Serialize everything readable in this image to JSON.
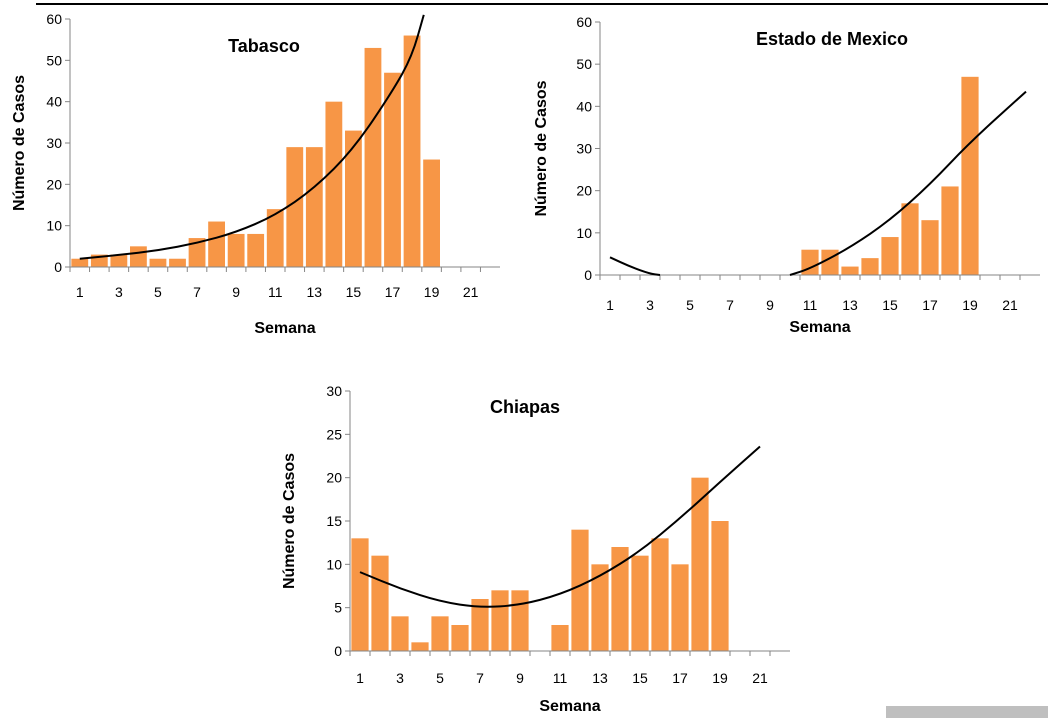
{
  "colors": {
    "bar": "#F79646",
    "trend": "#000000",
    "axis": "#868686"
  },
  "chart_data": [
    {
      "type": "bar",
      "title": "Tabasco",
      "xlabel": "Semana",
      "ylabel": "Número de Casos",
      "ylim": [
        0,
        60
      ],
      "yticks": [
        0,
        10,
        20,
        30,
        40,
        50,
        60
      ],
      "xlim": [
        0.5,
        22.5
      ],
      "xticks": [
        1,
        3,
        5,
        7,
        9,
        11,
        13,
        15,
        17,
        19,
        21
      ],
      "categories": [
        1,
        2,
        3,
        4,
        5,
        6,
        7,
        8,
        9,
        10,
        11,
        12,
        13,
        14,
        15,
        16,
        17,
        18,
        19
      ],
      "values": [
        2,
        3,
        3,
        5,
        2,
        2,
        7,
        11,
        8,
        8,
        14,
        29,
        29,
        40,
        33,
        53,
        47,
        56,
        26
      ],
      "trendline": {
        "type": "exponential",
        "x": [
          1,
          3,
          5,
          7,
          9,
          11,
          13,
          15,
          17,
          18,
          18.6
        ],
        "y": [
          2,
          2.9,
          4,
          5.8,
          8.4,
          12.5,
          19,
          28.5,
          42.5,
          51,
          61
        ]
      }
    },
    {
      "type": "bar",
      "title": "Estado de Mexico",
      "xlabel": "Semana",
      "ylabel": "Número de Casos",
      "ylim": [
        0,
        60
      ],
      "yticks": [
        0,
        10,
        20,
        30,
        40,
        50,
        60
      ],
      "xlim": [
        0.5,
        22.5
      ],
      "xticks": [
        1,
        3,
        5,
        7,
        9,
        11,
        13,
        15,
        17,
        19,
        21
      ],
      "categories": [
        1,
        2,
        3,
        4,
        5,
        6,
        7,
        8,
        9,
        10,
        11,
        12,
        13,
        14,
        15,
        16,
        17,
        18,
        19
      ],
      "values": [
        0,
        0,
        0,
        0,
        0,
        0,
        0,
        0,
        0,
        0,
        6,
        6,
        2,
        4,
        9,
        17,
        13,
        21,
        47
      ],
      "trendline": {
        "type": "polynomial",
        "x": [
          1,
          2,
          3,
          3.5
        ],
        "y": [
          4.2,
          2,
          0.3,
          0
        ],
        "x2": [
          10,
          11,
          13,
          15,
          17,
          19,
          21.8
        ],
        "y2": [
          0,
          1.5,
          6.5,
          13,
          21.5,
          31.5,
          43.5
        ]
      }
    },
    {
      "type": "bar",
      "title": "Chiapas",
      "xlabel": "Semana",
      "ylabel": "Número de Casos",
      "ylim": [
        0,
        30
      ],
      "yticks": [
        0,
        5,
        10,
        15,
        20,
        25,
        30
      ],
      "xlim": [
        0.5,
        22.5
      ],
      "xticks": [
        1,
        3,
        5,
        7,
        9,
        11,
        13,
        15,
        17,
        19,
        21
      ],
      "categories": [
        1,
        2,
        3,
        4,
        5,
        6,
        7,
        8,
        9,
        10,
        11,
        12,
        13,
        14,
        15,
        16,
        17,
        18,
        19
      ],
      "values": [
        13,
        11,
        4,
        1,
        4,
        3,
        6,
        7,
        7,
        0,
        3,
        14,
        10,
        12,
        11,
        13,
        10,
        20,
        15
      ],
      "trendline": {
        "type": "polynomial",
        "x": [
          1,
          3,
          5,
          7,
          9,
          11,
          13,
          15,
          17,
          19,
          21
        ],
        "y": [
          9.1,
          7.2,
          5.7,
          5,
          5.3,
          6.5,
          8.6,
          11.5,
          15.3,
          19.5,
          23.6
        ]
      }
    }
  ]
}
